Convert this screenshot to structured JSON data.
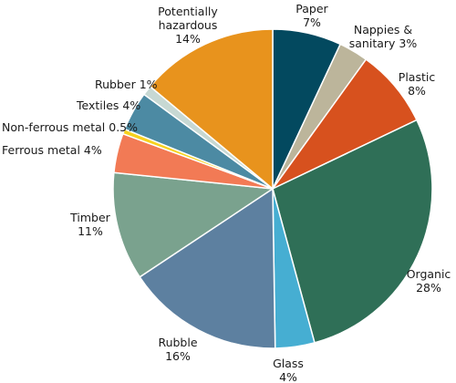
{
  "chart_data": {
    "type": "pie",
    "title": "",
    "start_angle_deg": 0,
    "direction": "clockwise",
    "slices": [
      {
        "label_lines": [
          "Paper",
          "7%"
        ],
        "value": 7,
        "color": "#03495f"
      },
      {
        "label_lines": [
          "Nappies &",
          "sanitary 3%"
        ],
        "value": 3,
        "color": "#bcb59b"
      },
      {
        "label_lines": [
          "Plastic",
          "8%"
        ],
        "value": 8,
        "color": "#d7511e"
      },
      {
        "label_lines": [
          "Organic",
          "28%"
        ],
        "value": 28,
        "color": "#2f6f57"
      },
      {
        "label_lines": [
          "Glass",
          "4%"
        ],
        "value": 4,
        "color": "#46aed2"
      },
      {
        "label_lines": [
          "Rubble",
          "16%"
        ],
        "value": 16,
        "color": "#5d80a0"
      },
      {
        "label_lines": [
          "Timber",
          "11%"
        ],
        "value": 11,
        "color": "#7aa28e"
      },
      {
        "label_lines": [
          "Ferrous metal 4%"
        ],
        "value": 4,
        "color": "#f27a55"
      },
      {
        "label_lines": [
          "Non-ferrous metal 0.5%"
        ],
        "value": 0.5,
        "color": "#f7d21f"
      },
      {
        "label_lines": [
          "Textiles 4%"
        ],
        "value": 4,
        "color": "#4c8aa3"
      },
      {
        "label_lines": [
          "Rubber 1%"
        ],
        "value": 1,
        "color": "#c7d8d3"
      },
      {
        "label_lines": [
          "Potentially",
          "hazardous",
          "14%"
        ],
        "value": 14,
        "color": "#e8931d"
      }
    ]
  }
}
